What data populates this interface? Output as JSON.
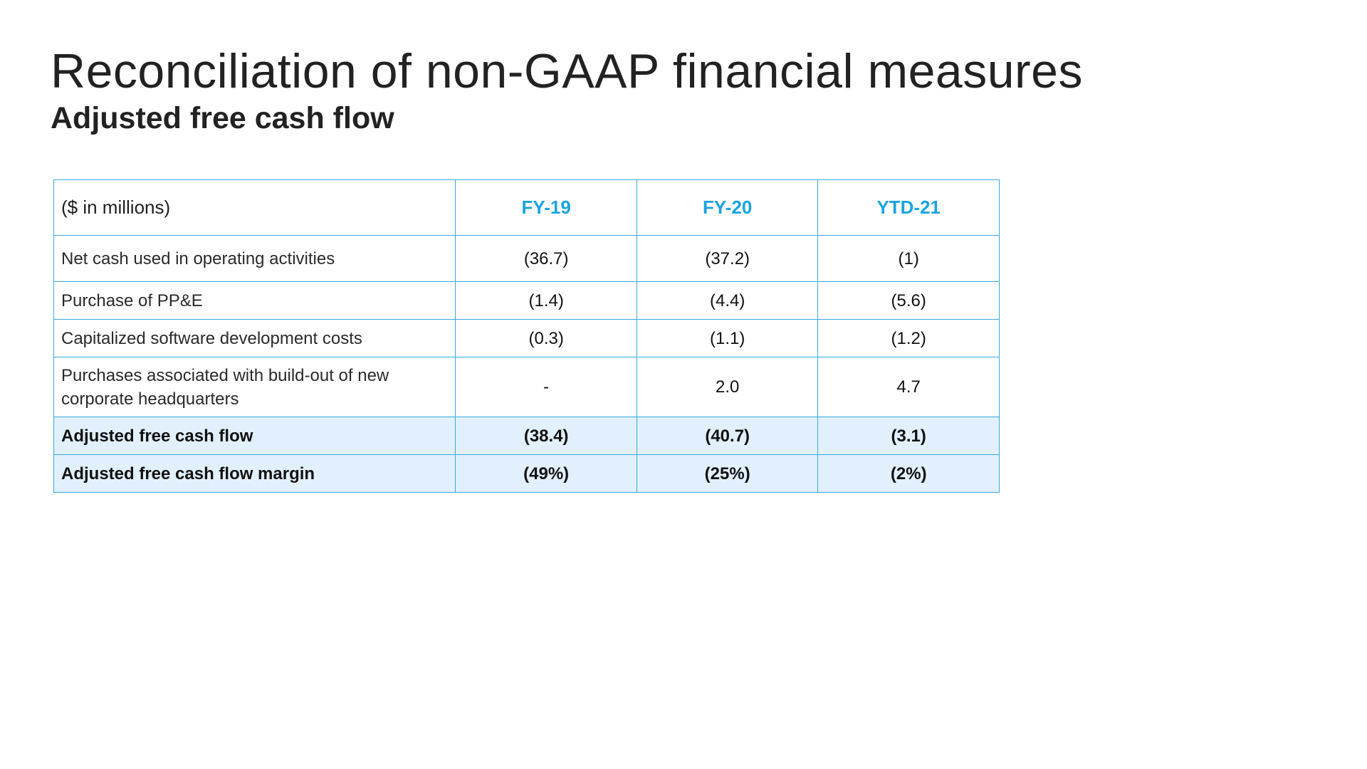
{
  "title": "Reconciliation of non-GAAP financial measures",
  "subtitle": "Adjusted free cash flow",
  "table": {
    "unit_label": "($ in millions)",
    "columns": [
      "FY-19",
      "FY-20",
      "YTD-21"
    ],
    "rows": [
      {
        "label": "Net cash used in operating activities",
        "values": [
          "(36.7)",
          "(37.2)",
          "(1)"
        ]
      },
      {
        "label": "Purchase of PP&E",
        "values": [
          "(1.4)",
          "(4.4)",
          "(5.6)"
        ]
      },
      {
        "label": "Capitalized software development costs",
        "values": [
          "(0.3)",
          "(1.1)",
          "(1.2)"
        ]
      },
      {
        "label": "Purchases associated with build-out of new corporate headquarters",
        "values": [
          "-",
          "2.0",
          "4.7"
        ]
      },
      {
        "label": "Adjusted free cash flow",
        "values": [
          "(38.4)",
          "(40.7)",
          "(3.1)"
        ]
      },
      {
        "label": "Adjusted free cash flow margin",
        "values": [
          "(49%)",
          "(25%)",
          "(2%)"
        ]
      }
    ]
  },
  "colors": {
    "border": "#3aa8dc",
    "header_text": "#1aa3df",
    "total_row_bg": "#e1f0fc"
  }
}
